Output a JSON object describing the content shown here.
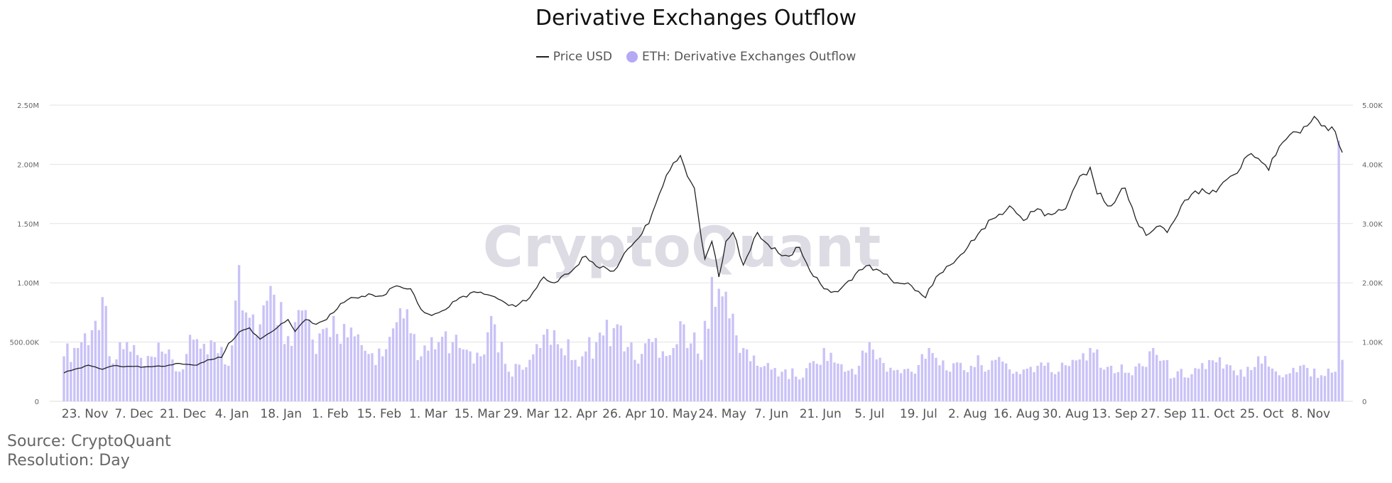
{
  "title": "Derivative Exchanges Outflow",
  "legend": {
    "price_label": "Price USD",
    "outflow_label": "ETH: Derivative Exchanges Outflow"
  },
  "watermark": "CryptoQuant",
  "source": "Source: CryptoQuant",
  "resolution": "Resolution: Day",
  "colors": {
    "bar": "#c9c2f7",
    "price_line": "#222222",
    "grid": "#e3e3e3",
    "watermark": "#d8d6e0"
  },
  "chart_data": {
    "type": "bar",
    "x_tick_labels": [
      "23. Nov",
      "7. Dec",
      "21. Dec",
      "4. Jan",
      "18. Jan",
      "1. Feb",
      "15. Feb",
      "1. Mar",
      "15. Mar",
      "29. Mar",
      "12. Apr",
      "26. Apr",
      "10. May",
      "24. May",
      "7. Jun",
      "21. Jun",
      "5. Jul",
      "19. Jul",
      "2. Aug",
      "16. Aug",
      "30. Aug",
      "13. Sep",
      "27. Sep",
      "11. Oct",
      "25. Oct",
      "8. Nov"
    ],
    "left_axis": {
      "ticks": [
        "0",
        "500.00K",
        "1.00M",
        "1.50M",
        "2.00M",
        "2.50M"
      ],
      "ylim": [
        0,
        2500000
      ]
    },
    "right_axis": {
      "ticks": [
        "0",
        "1.00K",
        "2.00K",
        "3.00K",
        "4.00K",
        "5.00K"
      ],
      "ylim": [
        0,
        5000
      ]
    },
    "grid": true,
    "legend_position": "top-center",
    "series": [
      {
        "name": "ETH: Derivative Exchanges Outflow",
        "type": "bar",
        "axis": "left",
        "anchors": [
          [
            "2020-11-17",
            380000
          ],
          [
            "2020-11-20",
            450000
          ],
          [
            "2020-11-25",
            600000
          ],
          [
            "2020-11-28",
            880000
          ],
          [
            "2020-12-01",
            320000
          ],
          [
            "2020-12-05",
            500000
          ],
          [
            "2020-12-10",
            300000
          ],
          [
            "2020-12-15",
            420000
          ],
          [
            "2020-12-20",
            250000
          ],
          [
            "2020-12-24",
            520000
          ],
          [
            "2020-12-30",
            500000
          ],
          [
            "2021-01-03",
            300000
          ],
          [
            "2021-01-05",
            850000
          ],
          [
            "2021-01-06",
            1150000
          ],
          [
            "2021-01-08",
            750000
          ],
          [
            "2021-01-12",
            650000
          ],
          [
            "2021-01-16",
            900000
          ],
          [
            "2021-01-20",
            550000
          ],
          [
            "2021-01-25",
            770000
          ],
          [
            "2021-01-28",
            400000
          ],
          [
            "2021-02-02",
            720000
          ],
          [
            "2021-02-06",
            540000
          ],
          [
            "2021-02-12",
            400000
          ],
          [
            "2021-02-16",
            380000
          ],
          [
            "2021-02-22",
            700000
          ],
          [
            "2021-02-27",
            380000
          ],
          [
            "2021-03-04",
            500000
          ],
          [
            "2021-03-10",
            450000
          ],
          [
            "2021-03-16",
            380000
          ],
          [
            "2021-03-20",
            650000
          ],
          [
            "2021-03-24",
            250000
          ],
          [
            "2021-03-30",
            350000
          ],
          [
            "2021-04-02",
            450000
          ],
          [
            "2021-04-06",
            600000
          ],
          [
            "2021-04-12",
            350000
          ],
          [
            "2021-04-18",
            500000
          ],
          [
            "2021-04-24",
            650000
          ],
          [
            "2021-04-29",
            350000
          ],
          [
            "2021-05-04",
            500000
          ],
          [
            "2021-05-10",
            450000
          ],
          [
            "2021-05-13",
            650000
          ],
          [
            "2021-05-18",
            350000
          ],
          [
            "2021-05-21",
            1050000
          ],
          [
            "2021-05-23",
            950000
          ],
          [
            "2021-05-26",
            700000
          ],
          [
            "2021-05-30",
            450000
          ],
          [
            "2021-06-03",
            300000
          ],
          [
            "2021-06-10",
            250000
          ],
          [
            "2021-06-16",
            200000
          ],
          [
            "2021-06-22",
            450000
          ],
          [
            "2021-06-28",
            250000
          ],
          [
            "2021-07-02",
            300000
          ],
          [
            "2021-07-05",
            500000
          ],
          [
            "2021-07-10",
            250000
          ],
          [
            "2021-07-17",
            250000
          ],
          [
            "2021-07-22",
            450000
          ],
          [
            "2021-07-28",
            250000
          ],
          [
            "2021-08-03",
            300000
          ],
          [
            "2021-08-10",
            350000
          ],
          [
            "2021-08-16",
            250000
          ],
          [
            "2021-08-22",
            300000
          ],
          [
            "2021-08-28",
            250000
          ],
          [
            "2021-09-01",
            350000
          ],
          [
            "2021-09-06",
            450000
          ],
          [
            "2021-09-12",
            300000
          ],
          [
            "2021-09-18",
            220000
          ],
          [
            "2021-09-24",
            450000
          ],
          [
            "2021-09-30",
            200000
          ],
          [
            "2021-10-06",
            280000
          ],
          [
            "2021-10-12",
            330000
          ],
          [
            "2021-10-18",
            220000
          ],
          [
            "2021-10-24",
            380000
          ],
          [
            "2021-10-30",
            220000
          ],
          [
            "2021-11-05",
            300000
          ],
          [
            "2021-11-11",
            220000
          ],
          [
            "2021-11-15",
            250000
          ],
          [
            "2021-11-16",
            2200000
          ],
          [
            "2021-11-17",
            350000
          ]
        ]
      },
      {
        "name": "Price USD",
        "type": "line",
        "axis": "right",
        "anchors": [
          [
            "2020-11-17",
            480
          ],
          [
            "2020-11-20",
            540
          ],
          [
            "2020-11-24",
            610
          ],
          [
            "2020-11-28",
            540
          ],
          [
            "2020-12-01",
            600
          ],
          [
            "2020-12-05",
            590
          ],
          [
            "2020-12-10",
            580
          ],
          [
            "2020-12-15",
            590
          ],
          [
            "2020-12-20",
            640
          ],
          [
            "2020-12-25",
            610
          ],
          [
            "2020-12-28",
            700
          ],
          [
            "2021-01-01",
            740
          ],
          [
            "2021-01-03",
            980
          ],
          [
            "2021-01-07",
            1200
          ],
          [
            "2021-01-09",
            1240
          ],
          [
            "2021-01-12",
            1050
          ],
          [
            "2021-01-16",
            1200
          ],
          [
            "2021-01-20",
            1380
          ],
          [
            "2021-01-22",
            1180
          ],
          [
            "2021-01-25",
            1380
          ],
          [
            "2021-01-28",
            1300
          ],
          [
            "2021-01-31",
            1380
          ],
          [
            "2021-02-04",
            1650
          ],
          [
            "2021-02-08",
            1750
          ],
          [
            "2021-02-13",
            1800
          ],
          [
            "2021-02-16",
            1780
          ],
          [
            "2021-02-20",
            1950
          ],
          [
            "2021-02-24",
            1900
          ],
          [
            "2021-02-27",
            1550
          ],
          [
            "2021-03-02",
            1450
          ],
          [
            "2021-03-06",
            1550
          ],
          [
            "2021-03-10",
            1750
          ],
          [
            "2021-03-14",
            1850
          ],
          [
            "2021-03-18",
            1800
          ],
          [
            "2021-03-22",
            1700
          ],
          [
            "2021-03-26",
            1600
          ],
          [
            "2021-03-30",
            1750
          ],
          [
            "2021-04-03",
            2100
          ],
          [
            "2021-04-06",
            2000
          ],
          [
            "2021-04-10",
            2150
          ],
          [
            "2021-04-15",
            2450
          ],
          [
            "2021-04-19",
            2250
          ],
          [
            "2021-04-23",
            2200
          ],
          [
            "2021-04-26",
            2500
          ],
          [
            "2021-04-30",
            2750
          ],
          [
            "2021-05-03",
            3000
          ],
          [
            "2021-05-06",
            3500
          ],
          [
            "2021-05-09",
            3900
          ],
          [
            "2021-05-12",
            4150
          ],
          [
            "2021-05-14",
            3800
          ],
          [
            "2021-05-16",
            3600
          ],
          [
            "2021-05-19",
            2400
          ],
          [
            "2021-05-21",
            2700
          ],
          [
            "2021-05-23",
            2100
          ],
          [
            "2021-05-25",
            2700
          ],
          [
            "2021-05-27",
            2850
          ],
          [
            "2021-05-30",
            2300
          ],
          [
            "2021-06-03",
            2850
          ],
          [
            "2021-06-06",
            2650
          ],
          [
            "2021-06-09",
            2500
          ],
          [
            "2021-06-12",
            2450
          ],
          [
            "2021-06-15",
            2600
          ],
          [
            "2021-06-18",
            2200
          ],
          [
            "2021-06-22",
            1900
          ],
          [
            "2021-06-26",
            1850
          ],
          [
            "2021-07-01",
            2150
          ],
          [
            "2021-07-05",
            2300
          ],
          [
            "2021-07-09",
            2150
          ],
          [
            "2021-07-13",
            2000
          ],
          [
            "2021-07-17",
            1950
          ],
          [
            "2021-07-21",
            1750
          ],
          [
            "2021-07-24",
            2100
          ],
          [
            "2021-07-28",
            2300
          ],
          [
            "2021-08-02",
            2600
          ],
          [
            "2021-08-06",
            2900
          ],
          [
            "2021-08-10",
            3100
          ],
          [
            "2021-08-14",
            3300
          ],
          [
            "2021-08-18",
            3050
          ],
          [
            "2021-08-22",
            3250
          ],
          [
            "2021-08-26",
            3150
          ],
          [
            "2021-08-30",
            3250
          ],
          [
            "2021-09-03",
            3800
          ],
          [
            "2021-09-06",
            3950
          ],
          [
            "2021-09-08",
            3500
          ],
          [
            "2021-09-12",
            3300
          ],
          [
            "2021-09-16",
            3600
          ],
          [
            "2021-09-20",
            2950
          ],
          [
            "2021-09-22",
            2800
          ],
          [
            "2021-09-25",
            2950
          ],
          [
            "2021-09-28",
            2850
          ],
          [
            "2021-10-02",
            3300
          ],
          [
            "2021-10-06",
            3550
          ],
          [
            "2021-10-10",
            3500
          ],
          [
            "2021-10-14",
            3700
          ],
          [
            "2021-10-18",
            3850
          ],
          [
            "2021-10-21",
            4150
          ],
          [
            "2021-10-24",
            4100
          ],
          [
            "2021-10-27",
            3900
          ],
          [
            "2021-10-30",
            4300
          ],
          [
            "2021-11-03",
            4550
          ],
          [
            "2021-11-07",
            4650
          ],
          [
            "2021-11-10",
            4750
          ],
          [
            "2021-11-12",
            4650
          ],
          [
            "2021-11-15",
            4550
          ],
          [
            "2021-11-17",
            4200
          ]
        ]
      }
    ]
  }
}
